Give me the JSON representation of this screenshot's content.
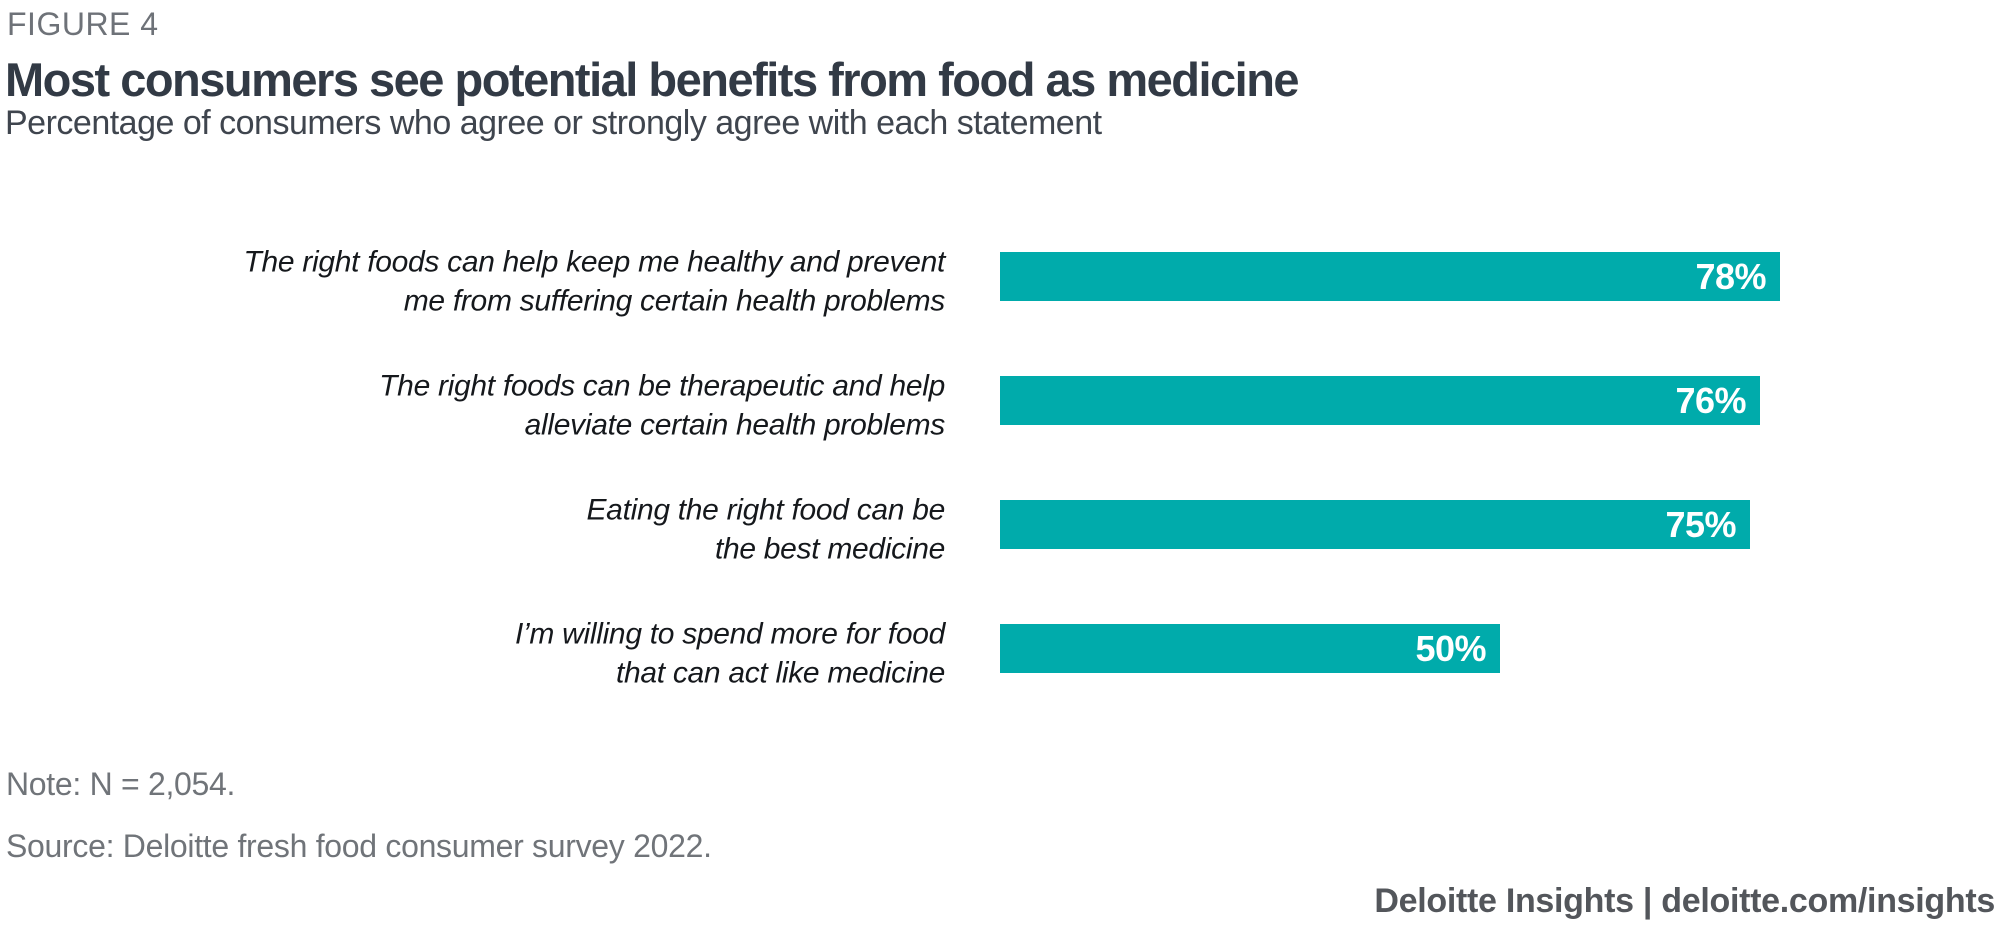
{
  "figure_label": "FIGURE 4",
  "title": "Most consumers see potential benefits from food as medicine",
  "subtitle": "Percentage of consumers who agree or strongly agree with each statement",
  "chart_data": {
    "type": "bar",
    "orientation": "horizontal",
    "title": "Most consumers see potential benefits from food as medicine",
    "xlabel": "",
    "ylabel": "",
    "xlim": [
      0,
      100
    ],
    "grid": false,
    "legend": false,
    "value_format": "percent",
    "categories": [
      "The right foods can help keep me healthy and prevent me from suffering certain health problems",
      "The right foods can be therapeutic and help alleviate certain health problems",
      "Eating the right food can be the best medicine",
      "I’m willing to spend more for food that can act like medicine"
    ],
    "values": [
      78,
      76,
      75,
      50
    ],
    "bars": [
      {
        "label_line1": "The right foods can help keep me healthy and prevent",
        "label_line2": "me from suffering certain health problems",
        "value": 78,
        "value_label": "78%"
      },
      {
        "label_line1": "The right foods can be therapeutic and help",
        "label_line2": "alleviate certain health problems",
        "value": 76,
        "value_label": "76%"
      },
      {
        "label_line1": "Eating the right food can be",
        "label_line2": "the best medicine",
        "value": 75,
        "value_label": "75%"
      },
      {
        "label_line1": "I’m willing to spend more for food",
        "label_line2": "that can act like medicine",
        "value": 50,
        "value_label": "50%"
      }
    ]
  },
  "note": "Note: N = 2,054.",
  "source": "Source: Deloitte fresh food consumer survey 2022.",
  "footer": "Deloitte Insights | deloitte.com/insights",
  "colors": {
    "accent": "#00ABAB",
    "title-text": "#323A45",
    "subtitle-text": "#3F454E",
    "label-text": "#15181C",
    "muted-text": "#707479",
    "figure-label-text": "#6E7278",
    "footer-text": "#53565B",
    "value-text": "#FFFFFF",
    "background": "#FFFFFF"
  }
}
